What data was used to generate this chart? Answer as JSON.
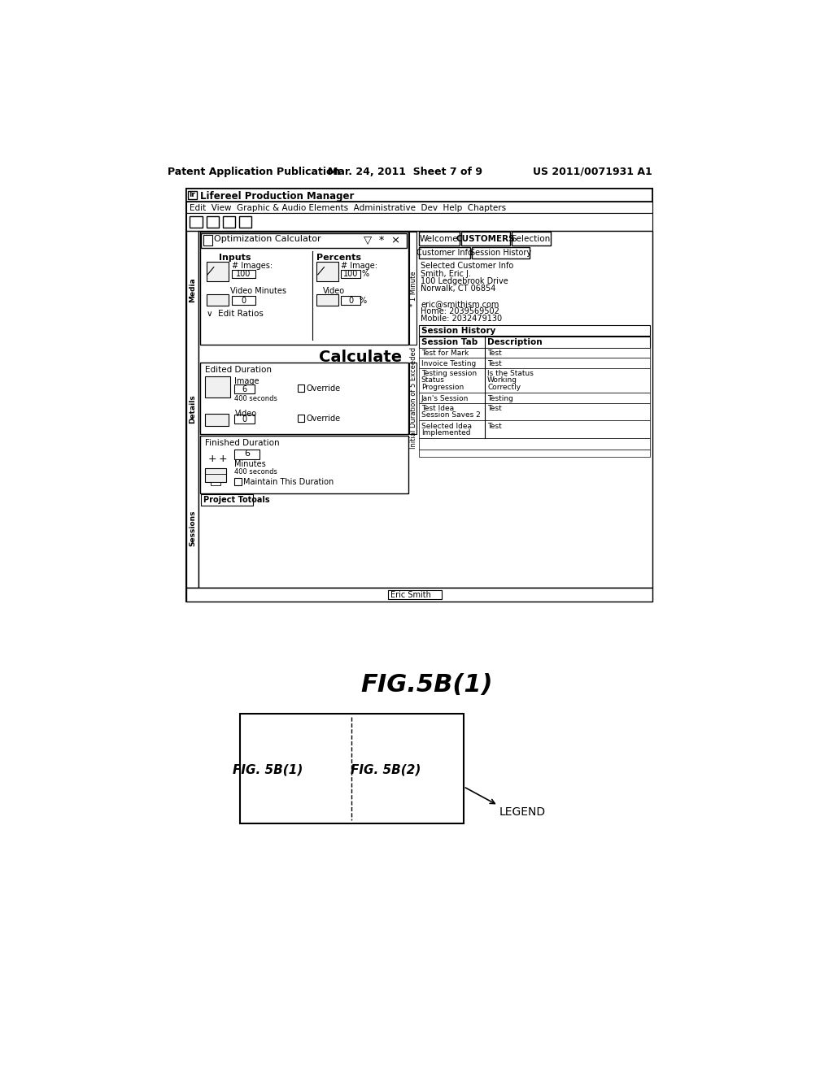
{
  "bg_color": "#ffffff",
  "header_text1": "Patent Application Publication",
  "header_text2": "Mar. 24, 2011  Sheet 7 of 9",
  "header_text3": "US 2011/0071931 A1",
  "fig_caption": "FIG.5B(1)",
  "title_bar": "Lifereel Production Manager",
  "menu_bar": "Edit  View  Graphic & Audio Elements  Administrative  Dev  Help  Chapters",
  "tabs_left": [
    "Media",
    "Details",
    "Sessions"
  ],
  "welcome_tabs": [
    "Welcome",
    "CUSTOMERS",
    "Selection"
  ],
  "customer_info_tabs": [
    "Customer Info",
    "Session History"
  ],
  "customer_info_lines": [
    "Selected Customer Info",
    "Smith, Eric J.",
    "100 Ledgebrook Drive",
    "Norwalk, CT 06854",
    "",
    "eric@smithism.com",
    "Home: 2039569502",
    "Mobile: 2032479130"
  ],
  "session_history_label": "Session History",
  "session_table_headers": [
    "Session Tab",
    "Description"
  ],
  "session_table_rows": [
    [
      "Test for Mark",
      "Test"
    ],
    [
      "Invoice Testing",
      "Test"
    ],
    [
      "Testing session\nStatus\nProgression",
      "Is the Status\nWorking\nCorrectly"
    ],
    [
      "Jan's Session",
      "Testing"
    ],
    [
      "Test Idea\nSession Saves 2",
      "Test"
    ],
    [
      "Selected Idea\nImplemented",
      "Test"
    ]
  ],
  "calc_title": "Optimization Calculator",
  "inputs_label": "Inputs",
  "percents_label": "Percents",
  "images_label": "# Images:",
  "images_val": "100",
  "image_pct_label": "# Image:",
  "image_pct_val": "100",
  "video_min_label": "Video Minutes",
  "video_min_val": "0",
  "video_pct_label": "Video",
  "video_pct_val": "0",
  "edit_ratios": "Edit Ratios",
  "calculate_label": "Calculate",
  "edited_duration_label": "Edited Duration",
  "image_dur_label": "Image",
  "image_dur_val": "6",
  "image_dur_sec": "400 seconds",
  "override1": "Override",
  "video_dur_label": "Video",
  "video_dur_val": "0",
  "override2": "Override",
  "finished_duration_label": "Finished Duration",
  "fin_val": "6",
  "fin_minutes": "Minutes",
  "fin_seconds": "400 seconds",
  "maintain_label": "Maintain This Duration",
  "project_totals": "Project Totoals",
  "eric_smith": "Eric Smith",
  "vertical_label": "Initial Duration of 5 Exceeded",
  "minute_label": "* 1 Minute",
  "legend_box_label": "LEGEND",
  "fig5b1_label": "FIG. 5B(1)",
  "fig5b2_label": "FIG. 5B(2)"
}
